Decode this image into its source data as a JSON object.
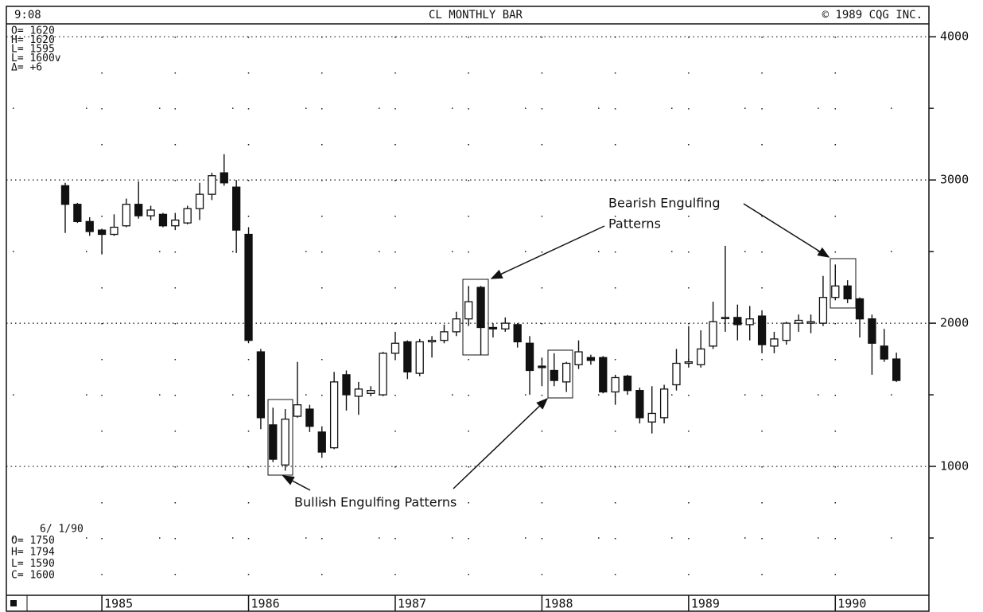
{
  "chart_data": {
    "type": "candlestick",
    "title": "CL MONTHLY BAR",
    "header_left": "9:08",
    "header_right": "© 1989 CQG INC.",
    "info_top": [
      "O= 1620",
      "H= 1620",
      "L= 1595",
      "L= 1600v",
      "Δ=    +6"
    ],
    "info_bottom": [
      "6/ 1/90",
      "O= 1750",
      "H= 1794",
      "L= 1590",
      "C= 1600"
    ],
    "annotations": [
      [
        "Bearish Engulfing",
        "Patterns"
      ],
      [
        "Bullish Engulfing Patterns"
      ]
    ],
    "categories": [
      null,
      null,
      null,
      "1985",
      null,
      null,
      null,
      null,
      null,
      null,
      null,
      null,
      null,
      null,
      null,
      "1986",
      null,
      null,
      null,
      null,
      null,
      null,
      null,
      null,
      null,
      null,
      null,
      "1987",
      null,
      null,
      null,
      null,
      null,
      null,
      null,
      null,
      null,
      null,
      null,
      "1988",
      null,
      null,
      null,
      null,
      null,
      null,
      null,
      null,
      null,
      null,
      null,
      "1989",
      null,
      null,
      null,
      null,
      null,
      null,
      null,
      null,
      null,
      null,
      null,
      "1990",
      null,
      null,
      null,
      null,
      null
    ],
    "open": [
      2960,
      2830,
      2710,
      2650,
      2620,
      2680,
      2830,
      2750,
      2760,
      2680,
      2700,
      2800,
      2900,
      3050,
      2950,
      2620,
      1800,
      1290,
      1010,
      1350,
      1400,
      1240,
      1130,
      1640,
      1490,
      1510,
      1500,
      1790,
      1870,
      1650,
      1870,
      1880,
      1940,
      2030,
      2250,
      1970,
      1960,
      1990,
      1860,
      1700,
      1670,
      1590,
      1710,
      1760,
      1760,
      1520,
      1630,
      1530,
      1310,
      1340,
      1570,
      1720,
      1710,
      1840,
      2040,
      2040,
      1990,
      2050,
      1840,
      1880,
      2000,
      2000,
      2000,
      2180,
      2260,
      2170,
      2030,
      1840,
      1750
    ],
    "high": [
      2980,
      2840,
      2740,
      2660,
      2760,
      2870,
      2990,
      2820,
      2770,
      2770,
      2820,
      2980,
      3050,
      3180,
      3000,
      2670,
      1820,
      1410,
      1400,
      1730,
      1430,
      1280,
      1660,
      1670,
      1590,
      1560,
      1800,
      1940,
      1880,
      1890,
      1910,
      1990,
      2080,
      2260,
      2260,
      2000,
      2040,
      2000,
      1910,
      1760,
      1790,
      1730,
      1880,
      1780,
      1770,
      1640,
      1640,
      1550,
      1560,
      1570,
      1820,
      1980,
      1950,
      2150,
      2540,
      2130,
      2120,
      2090,
      1940,
      2010,
      2060,
      2060,
      2330,
      2410,
      2300,
      2180,
      2060,
      1960,
      1794
    ],
    "low": [
      2630,
      2700,
      2610,
      2480,
      2610,
      2670,
      2730,
      2720,
      2670,
      2650,
      2690,
      2720,
      2860,
      2960,
      2490,
      1860,
      1260,
      1030,
      970,
      1340,
      1240,
      1060,
      1120,
      1390,
      1360,
      1490,
      1490,
      1750,
      1610,
      1630,
      1760,
      1860,
      1910,
      1980,
      1780,
      1900,
      1940,
      1830,
      1500,
      1560,
      1560,
      1520,
      1680,
      1710,
      1510,
      1430,
      1500,
      1300,
      1230,
      1300,
      1530,
      1690,
      1690,
      1820,
      1940,
      1880,
      1880,
      1790,
      1790,
      1850,
      1940,
      1930,
      1980,
      2160,
      2140,
      1900,
      1640,
      1730,
      1590
    ],
    "close": [
      2830,
      2710,
      2640,
      2620,
      2670,
      2830,
      2750,
      2790,
      2680,
      2720,
      2800,
      2900,
      3030,
      2980,
      2650,
      1880,
      1340,
      1050,
      1330,
      1430,
      1280,
      1100,
      1590,
      1500,
      1540,
      1530,
      1790,
      1860,
      1660,
      1870,
      1880,
      1940,
      2030,
      2150,
      1970,
      1960,
      2000,
      1870,
      1670,
      1690,
      1600,
      1720,
      1800,
      1740,
      1520,
      1620,
      1530,
      1340,
      1370,
      1540,
      1720,
      1730,
      1820,
      2010,
      2040,
      1990,
      2030,
      1850,
      1890,
      2000,
      2020,
      2010,
      2180,
      2260,
      2170,
      2030,
      1860,
      1750,
      1600
    ],
    "up_color": "#ffffff",
    "down_color": "#111111",
    "ylim": [
      100,
      4090
    ],
    "yticks": [
      1000,
      2000,
      3000,
      4000
    ],
    "yticks_minor": [
      500,
      1500,
      2500,
      3500
    ],
    "grid": true
  }
}
